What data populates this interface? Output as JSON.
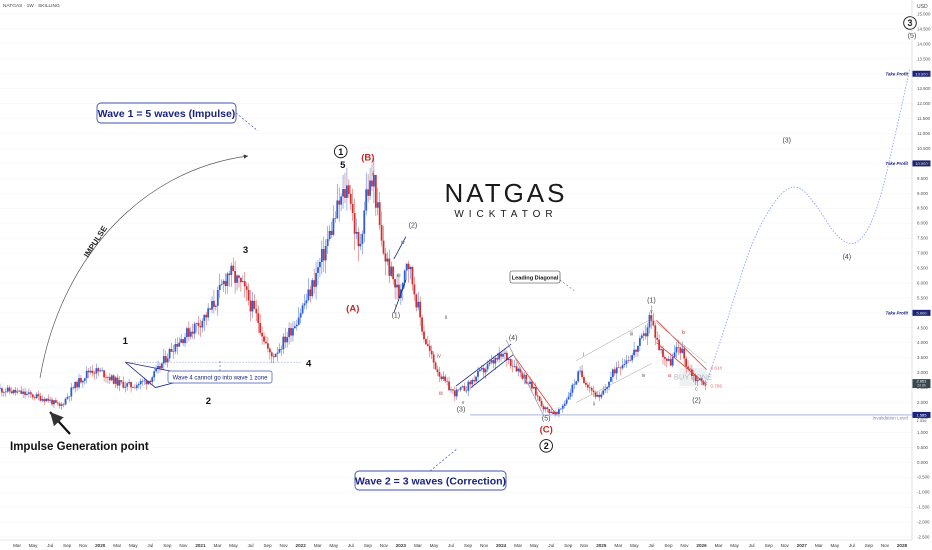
{
  "header": {
    "symbol": "NATGAS · 1W · SKILLING",
    "currency": "USD"
  },
  "brand": {
    "name": "NATGAS",
    "tagline": "WICKTATOR"
  },
  "chart_data": {
    "type": "candlestick",
    "title": "",
    "xlabel": "",
    "ylabel": "",
    "y_axis_side": "right",
    "ylim": [
      -2.6,
      15.2
    ],
    "y_ticks": [
      -2.5,
      -2.0,
      -1.5,
      -1.0,
      -0.5,
      0.0,
      0.5,
      1.0,
      1.5,
      2.0,
      2.5,
      3.0,
      3.5,
      4.0,
      4.5,
      5.0,
      5.5,
      6.0,
      6.5,
      7.0,
      7.5,
      8.0,
      8.5,
      9.0,
      9.5,
      10.0,
      10.5,
      11.0,
      11.5,
      12.0,
      12.5,
      13.0,
      13.5,
      14.0,
      14.5,
      15.0
    ],
    "y_tick_labels": [
      "-2.500",
      "-2.000",
      "-1.500",
      "-1.000",
      "-0.500",
      "0.000",
      "0.500",
      "1.000",
      "1.500",
      "2.000",
      "2.500",
      "3.000",
      "3.500",
      "4.000",
      "4.500",
      "5.000",
      "5.500",
      "6.000",
      "6.500",
      "7.000",
      "7.500",
      "8.000",
      "8.500",
      "9.000",
      "9.500",
      "10.000",
      "10.500",
      "11.000",
      "11.500",
      "12.000",
      "12.500",
      "13.000",
      "13.500",
      "14.000",
      "14.500",
      "15.000"
    ],
    "x_ticks": [
      {
        "t": 2019.17,
        "label": "Mar"
      },
      {
        "t": 2019.33,
        "label": "May"
      },
      {
        "t": 2019.5,
        "label": "Jul"
      },
      {
        "t": 2019.67,
        "label": "Sep"
      },
      {
        "t": 2019.83,
        "label": "Nov"
      },
      {
        "t": 2020.0,
        "label": "2020"
      },
      {
        "t": 2020.17,
        "label": "Mar"
      },
      {
        "t": 2020.33,
        "label": "May"
      },
      {
        "t": 2020.5,
        "label": "Jul"
      },
      {
        "t": 2020.67,
        "label": "Sep"
      },
      {
        "t": 2020.83,
        "label": "Nov"
      },
      {
        "t": 2021.0,
        "label": "2021"
      },
      {
        "t": 2021.17,
        "label": "Mar"
      },
      {
        "t": 2021.33,
        "label": "May"
      },
      {
        "t": 2021.5,
        "label": "Jul"
      },
      {
        "t": 2021.67,
        "label": "Sep"
      },
      {
        "t": 2021.83,
        "label": "Nov"
      },
      {
        "t": 2022.0,
        "label": "2022"
      },
      {
        "t": 2022.17,
        "label": "Mar"
      },
      {
        "t": 2022.33,
        "label": "May"
      },
      {
        "t": 2022.5,
        "label": "Jul"
      },
      {
        "t": 2022.67,
        "label": "Sep"
      },
      {
        "t": 2022.83,
        "label": "Nov"
      },
      {
        "t": 2023.0,
        "label": "2023"
      },
      {
        "t": 2023.17,
        "label": "Mar"
      },
      {
        "t": 2023.33,
        "label": "May"
      },
      {
        "t": 2023.5,
        "label": "Jul"
      },
      {
        "t": 2023.67,
        "label": "Sep"
      },
      {
        "t": 2023.83,
        "label": "Nov"
      },
      {
        "t": 2024.0,
        "label": "2024"
      },
      {
        "t": 2024.17,
        "label": "Mar"
      },
      {
        "t": 2024.33,
        "label": "May"
      },
      {
        "t": 2024.5,
        "label": "Jul"
      },
      {
        "t": 2024.67,
        "label": "Sep"
      },
      {
        "t": 2024.83,
        "label": "Nov"
      },
      {
        "t": 2025.0,
        "label": "2025"
      },
      {
        "t": 2025.17,
        "label": "Mar"
      },
      {
        "t": 2025.33,
        "label": "May"
      },
      {
        "t": 2025.5,
        "label": "Jul"
      },
      {
        "t": 2025.67,
        "label": "Sep"
      },
      {
        "t": 2025.83,
        "label": "Nov"
      },
      {
        "t": 2026.0,
        "label": "2026"
      },
      {
        "t": 2026.17,
        "label": "Mar"
      },
      {
        "t": 2026.33,
        "label": "May"
      },
      {
        "t": 2026.5,
        "label": "Jul"
      },
      {
        "t": 2026.67,
        "label": "Sep"
      },
      {
        "t": 2026.83,
        "label": "Nov"
      },
      {
        "t": 2027.0,
        "label": "2027"
      },
      {
        "t": 2027.17,
        "label": "Mar"
      },
      {
        "t": 2027.33,
        "label": "May"
      },
      {
        "t": 2027.5,
        "label": "Jul"
      },
      {
        "t": 2027.67,
        "label": "Sep"
      },
      {
        "t": 2027.83,
        "label": "Nov"
      },
      {
        "t": 2028.0,
        "label": "2028"
      }
    ],
    "price_path": [
      [
        2019.0,
        2.45
      ],
      [
        2019.25,
        2.3
      ],
      [
        2019.5,
        2.1
      ],
      [
        2019.62,
        1.85
      ],
      [
        2019.75,
        2.5
      ],
      [
        2019.92,
        3.1
      ],
      [
        2020.04,
        3.0
      ],
      [
        2020.2,
        2.65
      ],
      [
        2020.33,
        2.55
      ],
      [
        2020.5,
        2.75
      ],
      [
        2020.58,
        3.0
      ],
      [
        2020.75,
        3.9
      ],
      [
        2020.95,
        4.5
      ],
      [
        2021.1,
        5.0
      ],
      [
        2021.2,
        5.6
      ],
      [
        2021.3,
        6.4
      ],
      [
        2021.45,
        5.8
      ],
      [
        2021.6,
        4.7
      ],
      [
        2021.72,
        3.5
      ],
      [
        2021.82,
        3.9
      ],
      [
        2021.95,
        4.6
      ],
      [
        2022.1,
        5.6
      ],
      [
        2022.25,
        7.0
      ],
      [
        2022.4,
        8.6
      ],
      [
        2022.5,
        9.3
      ],
      [
        2022.55,
        8.0
      ],
      [
        2022.6,
        7.0
      ],
      [
        2022.67,
        9.0
      ],
      [
        2022.75,
        9.4
      ],
      [
        2022.83,
        7.2
      ],
      [
        2022.92,
        6.3
      ],
      [
        2023.0,
        5.6
      ],
      [
        2023.08,
        6.9
      ],
      [
        2023.17,
        5.5
      ],
      [
        2023.25,
        4.2
      ],
      [
        2023.35,
        3.3
      ],
      [
        2023.45,
        2.7
      ],
      [
        2023.55,
        2.3
      ],
      [
        2023.67,
        2.5
      ],
      [
        2023.78,
        2.9
      ],
      [
        2023.92,
        3.3
      ],
      [
        2024.05,
        3.6
      ],
      [
        2024.17,
        3.2
      ],
      [
        2024.33,
        2.5
      ],
      [
        2024.45,
        1.8
      ],
      [
        2024.58,
        1.6
      ],
      [
        2024.67,
        2.1
      ],
      [
        2024.8,
        3.0
      ],
      [
        2024.92,
        2.45
      ],
      [
        2025.0,
        2.1
      ],
      [
        2025.08,
        2.6
      ],
      [
        2025.17,
        3.2
      ],
      [
        2025.33,
        3.6
      ],
      [
        2025.45,
        4.2
      ],
      [
        2025.5,
        4.85
      ],
      [
        2025.55,
        4.4
      ],
      [
        2025.6,
        3.8
      ],
      [
        2025.7,
        3.3
      ],
      [
        2025.8,
        3.9
      ],
      [
        2025.88,
        3.2
      ],
      [
        2025.96,
        2.8
      ],
      [
        2026.05,
        2.65
      ]
    ],
    "last_price": 2.65,
    "levels": [
      {
        "name": "Invalidation Level",
        "value": 1.585
      },
      {
        "name": "Take Profit",
        "value": 5.0
      },
      {
        "name": "Take Profit",
        "value": 10.0
      },
      {
        "name": "Take Profit",
        "value": 13.0
      }
    ],
    "buy_zone": {
      "label": "BUY ZONE",
      "top": 3.16,
      "bottom": 2.55,
      "fib_upper": "0.618",
      "fib_lower": "0.786"
    },
    "projection": [
      [
        2026.05,
        2.65
      ],
      [
        2026.3,
        5.2
      ],
      [
        2026.5,
        7.4
      ],
      [
        2026.75,
        8.9
      ],
      [
        2026.95,
        9.35
      ],
      [
        2027.15,
        8.6
      ],
      [
        2027.35,
        7.5
      ],
      [
        2027.55,
        7.2
      ],
      [
        2027.75,
        8.3
      ],
      [
        2027.95,
        11.2
      ],
      [
        2028.08,
        13.2
      ]
    ],
    "wave_labels": [
      {
        "text": "1",
        "t": 2020.25,
        "v": 3.95,
        "color": "#111",
        "weight": "bold"
      },
      {
        "text": "2",
        "t": 2021.08,
        "v": 1.95,
        "color": "#111",
        "weight": "bold"
      },
      {
        "text": "3",
        "t": 2021.45,
        "v": 7.0,
        "color": "#111",
        "weight": "bold"
      },
      {
        "text": "4",
        "t": 2022.08,
        "v": 3.2,
        "color": "#111",
        "weight": "bold"
      },
      {
        "text": "5",
        "t": 2022.42,
        "v": 9.85,
        "color": "#111",
        "weight": "bold"
      },
      {
        "text": "(B)",
        "t": 2022.67,
        "v": 10.1,
        "color": "#c62828",
        "weight": "bold"
      },
      {
        "text": "(A)",
        "t": 2022.52,
        "v": 5.05,
        "color": "#c62828",
        "weight": "bold"
      },
      {
        "text": "(2)",
        "t": 2023.12,
        "v": 7.85,
        "color": "#444",
        "weight": "normal"
      },
      {
        "text": "(1)",
        "t": 2022.95,
        "v": 4.85,
        "color": "#444",
        "weight": "normal"
      },
      {
        "text": "(3)",
        "t": 2023.6,
        "v": 1.7,
        "color": "#444",
        "weight": "normal"
      },
      {
        "text": "(4)",
        "t": 2024.12,
        "v": 4.1,
        "color": "#444",
        "weight": "normal"
      },
      {
        "text": "(5)",
        "t": 2024.45,
        "v": 1.4,
        "color": "#444",
        "weight": "normal"
      },
      {
        "text": "(C)",
        "t": 2024.45,
        "v": 1.0,
        "color": "#c62828",
        "weight": "bold"
      },
      {
        "text": "(1)",
        "t": 2025.5,
        "v": 5.35,
        "color": "#444",
        "weight": "normal"
      },
      {
        "text": "(2)",
        "t": 2025.95,
        "v": 2.0,
        "color": "#444",
        "weight": "normal"
      },
      {
        "text": "(3)",
        "t": 2026.85,
        "v": 10.7,
        "color": "#444",
        "weight": "normal"
      },
      {
        "text": "(4)",
        "t": 2027.45,
        "v": 6.8,
        "color": "#444",
        "weight": "normal"
      },
      {
        "text": "(5)",
        "t": 2028.1,
        "v": 14.2,
        "color": "#444",
        "weight": "normal"
      }
    ],
    "subwave_labels": [
      {
        "text": "ii",
        "t": 2022.72,
        "v": 9.6,
        "color": "#c62828"
      },
      {
        "text": "iv",
        "t": 2023.02,
        "v": 7.3,
        "color": "#555"
      },
      {
        "text": "iii",
        "t": 2022.98,
        "v": 6.2,
        "color": "#555"
      },
      {
        "text": "v",
        "t": 2022.95,
        "v": 5.2,
        "color": "#555"
      },
      {
        "text": "iv",
        "t": 2023.38,
        "v": 3.5,
        "color": "#c62828"
      },
      {
        "text": "iii",
        "t": 2023.4,
        "v": 2.25,
        "color": "#c62828"
      },
      {
        "text": "v",
        "t": 2023.62,
        "v": 1.95,
        "color": "#555"
      },
      {
        "text": "ii",
        "t": 2023.45,
        "v": 4.8,
        "color": "#555"
      },
      {
        "text": "i",
        "t": 2024.82,
        "v": 3.55,
        "color": "#555"
      },
      {
        "text": "ii",
        "t": 2024.93,
        "v": 1.9,
        "color": "#555"
      },
      {
        "text": "iii",
        "t": 2025.3,
        "v": 4.25,
        "color": "#555"
      },
      {
        "text": "iv",
        "t": 2025.42,
        "v": 2.85,
        "color": "#555"
      },
      {
        "text": "v",
        "t": 2025.5,
        "v": 5.0,
        "color": "#555"
      },
      {
        "text": "a",
        "t": 2025.68,
        "v": 2.85,
        "color": "#c62828"
      },
      {
        "text": "b",
        "t": 2025.82,
        "v": 4.3,
        "color": "#c62828"
      },
      {
        "text": "c",
        "t": 2025.95,
        "v": 2.4,
        "color": "#c62828"
      }
    ],
    "circled_labels": [
      {
        "text": "1",
        "t": 2022.4,
        "v": 10.4
      },
      {
        "text": "2",
        "t": 2024.45,
        "v": 0.55
      },
      {
        "text": "3",
        "t": 2028.08,
        "v": 14.7
      }
    ],
    "callouts": {
      "wave1": "Wave 1 = 5 waves (Impulse)",
      "wave2": "Wave 2 = 3 waves (Correction)",
      "wave4": "Wave 4 cannot go into wave 1 zone",
      "leading_diagonal": "Leading Diagonal",
      "impulse": "IMPULSE",
      "generation_point": "Impulse Generation point"
    },
    "price_labels": {
      "last": "2.651",
      "last_sub": "2d 8h",
      "invalidation": "1.585",
      "invalidation_alt": "1.536"
    }
  }
}
